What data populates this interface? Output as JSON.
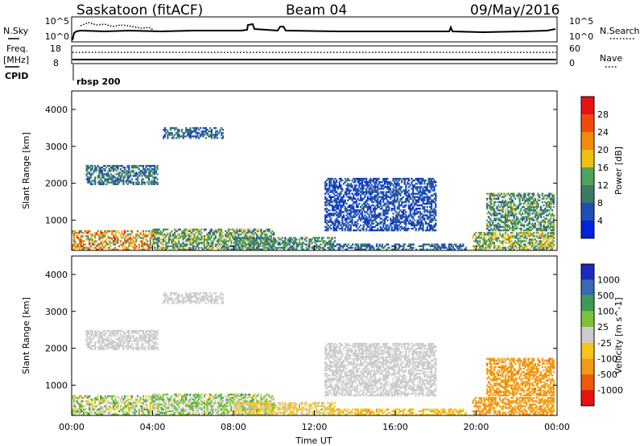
{
  "header": {
    "station": "Saskatoon (fitACF)",
    "beam": "Beam 04",
    "date": "09/May/2016"
  },
  "side_labels": {
    "n_sky": "N.Sky",
    "n_search": "N.Search",
    "freq_top": "Freq.",
    "freq_unit": "[MHz]",
    "nave": "Nave",
    "cpid": "CPID",
    "cpid_value": "rbsp 200"
  },
  "noise_panel": {
    "ylim_left": [
      "10^5",
      "10^0"
    ],
    "ylim_right": [
      "10^5",
      "10^0"
    ]
  },
  "freq_panel": {
    "left_ticks": [
      "18",
      "8"
    ],
    "right_ticks": [
      "60",
      "0"
    ]
  },
  "x_axis": {
    "label": "Time UT",
    "ticks": [
      "00:00",
      "04:00",
      "08:00",
      "12:00",
      "16:00",
      "20:00",
      "00:00"
    ]
  },
  "colors": {
    "power": [
      "#0022dd",
      "#1f4eb4",
      "#3d7a66",
      "#4fa25a",
      "#f0c010",
      "#f28a0c",
      "#f04a0a",
      "#e81212"
    ],
    "velocity": [
      "#e81212",
      "#f05a0a",
      "#f29a12",
      "#f5c418",
      "#cccccc",
      "#7ec23a",
      "#3f9a52",
      "#3a6ab0",
      "#1a2ac0"
    ]
  },
  "chart_data": [
    {
      "type": "heatmap",
      "title": "Power",
      "xlabel": "Time UT",
      "ylabel": "Slant Range [km]",
      "xlim": [
        "00:00",
        "24:00"
      ],
      "ylim": [
        180,
        4500
      ],
      "y_ticks": [
        "1000",
        "2000",
        "3000",
        "4000"
      ],
      "colorbar": {
        "label": "Power [dB]",
        "unit": "dB",
        "range": [
          0,
          32
        ],
        "ticks": [
          "4",
          "8",
          "12",
          "16",
          "20",
          "24",
          "28"
        ]
      },
      "regions": [
        {
          "t": [
            0.0,
            4.1
          ],
          "r": [
            180,
            700
          ],
          "mean": 20,
          "spread": 12
        },
        {
          "t": [
            0.7,
            4.2
          ],
          "r": [
            1950,
            2450
          ],
          "mean": 9,
          "spread": 6
        },
        {
          "t": [
            4.0,
            10.0
          ],
          "r": [
            180,
            750
          ],
          "mean": 13,
          "spread": 9
        },
        {
          "t": [
            8.0,
            13.0
          ],
          "r": [
            180,
            500
          ],
          "mean": 11,
          "spread": 7
        },
        {
          "t": [
            12.8,
            19.5
          ],
          "r": [
            180,
            350
          ],
          "mean": 8,
          "spread": 5
        },
        {
          "t": [
            12.5,
            18.0
          ],
          "r": [
            700,
            2100
          ],
          "mean": 6,
          "spread": 4
        },
        {
          "t": [
            19.8,
            23.8
          ],
          "r": [
            180,
            650
          ],
          "mean": 15,
          "spread": 8
        },
        {
          "t": [
            20.5,
            23.8
          ],
          "r": [
            700,
            1700
          ],
          "mean": 12,
          "spread": 8
        },
        {
          "t": [
            4.5,
            7.5
          ],
          "r": [
            3200,
            3500
          ],
          "mean": 8,
          "spread": 5
        }
      ]
    },
    {
      "type": "heatmap",
      "title": "Velocity",
      "xlabel": "Time UT",
      "ylabel": "Slant Range [km]",
      "xlim": [
        "00:00",
        "24:00"
      ],
      "ylim": [
        180,
        4500
      ],
      "y_ticks": [
        "1000",
        "2000",
        "3000",
        "4000"
      ],
      "colorbar": {
        "label": "Velocity [m s^-1]",
        "unit": "m s^-1",
        "bins": [
          "1000",
          "500",
          "100",
          "25",
          "-25",
          "-100",
          "-500",
          "-1000"
        ]
      },
      "regions": [
        {
          "t": [
            0.0,
            4.1
          ],
          "r": [
            180,
            700
          ],
          "mean": 30,
          "spread": 160
        },
        {
          "t": [
            0.7,
            4.2
          ],
          "r": [
            1950,
            2450
          ],
          "mean": 0,
          "spread": 25
        },
        {
          "t": [
            4.0,
            10.0
          ],
          "r": [
            180,
            750
          ],
          "mean": 40,
          "spread": 120
        },
        {
          "t": [
            8.0,
            13.0
          ],
          "r": [
            180,
            500
          ],
          "mean": -40,
          "spread": 80
        },
        {
          "t": [
            12.8,
            19.5
          ],
          "r": [
            180,
            350
          ],
          "mean": -80,
          "spread": 60
        },
        {
          "t": [
            12.5,
            18.0
          ],
          "r": [
            700,
            2100
          ],
          "mean": 0,
          "spread": 25
        },
        {
          "t": [
            19.8,
            23.8
          ],
          "r": [
            180,
            650
          ],
          "mean": -250,
          "spread": 200
        },
        {
          "t": [
            20.5,
            23.8
          ],
          "r": [
            700,
            1700
          ],
          "mean": -300,
          "spread": 250
        },
        {
          "t": [
            4.5,
            7.5
          ],
          "r": [
            3200,
            3500
          ],
          "mean": 0,
          "spread": 25
        }
      ]
    }
  ]
}
